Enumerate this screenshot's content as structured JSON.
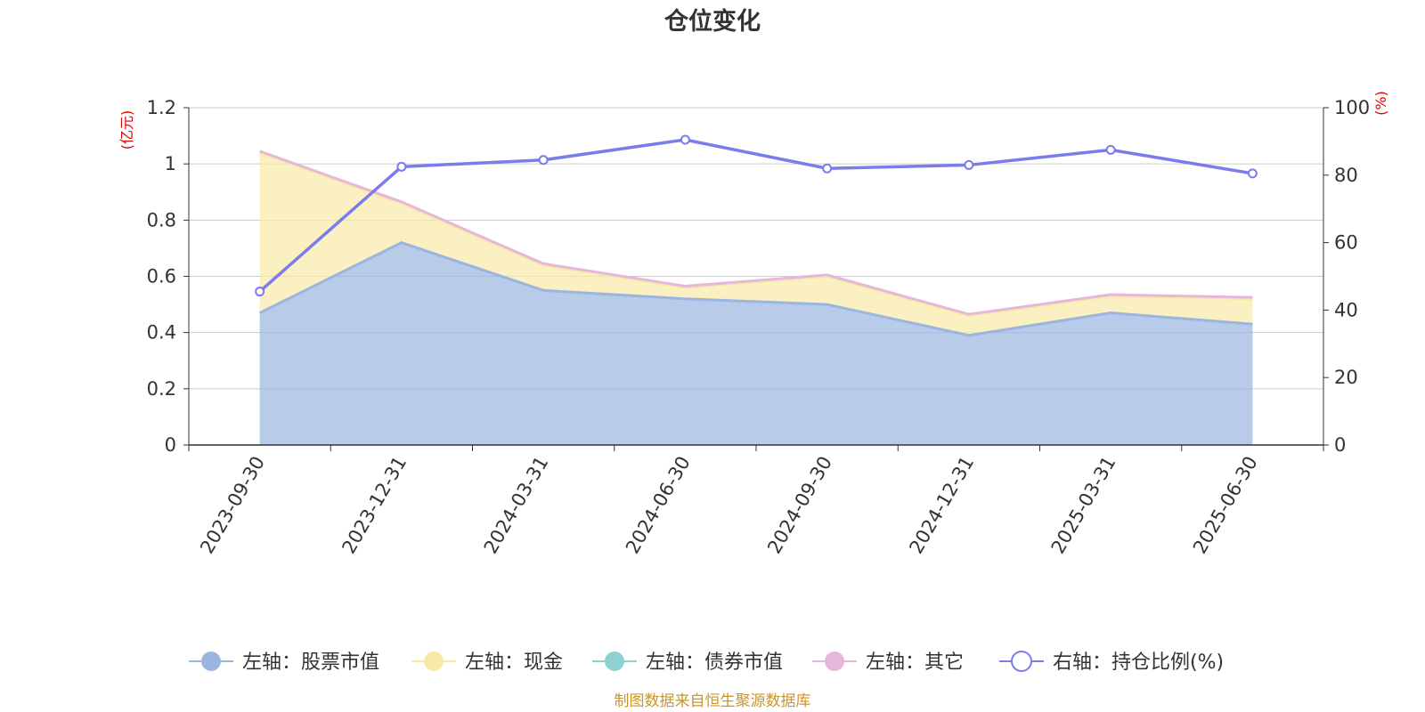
{
  "chart_data": {
    "type": "area",
    "title": "仓位变化",
    "left_axis_unit": "(亿元)",
    "right_axis_unit": "(%)",
    "x": [
      "2023-09-30",
      "2023-12-31",
      "2024-03-31",
      "2024-06-30",
      "2024-09-30",
      "2024-12-31",
      "2025-03-31",
      "2025-06-30"
    ],
    "left_ylim": [
      0,
      1.2
    ],
    "left_yticks": [
      "0",
      "0.2",
      "0.4",
      "0.6",
      "0.8",
      "1",
      "1.2"
    ],
    "right_ylim": [
      0,
      100
    ],
    "right_yticks": [
      "0",
      "20",
      "40",
      "60",
      "80",
      "100"
    ],
    "stacked": true,
    "grid": true,
    "legend_position": "bottom",
    "series": [
      {
        "name": "左轴：股票市值",
        "axis": "left",
        "kind": "area",
        "color": "#9ab5e0",
        "values": [
          0.47,
          0.72,
          0.55,
          0.52,
          0.5,
          0.39,
          0.47,
          0.43
        ]
      },
      {
        "name": "左轴：现金",
        "axis": "left",
        "kind": "area",
        "color": "#f9e9a6",
        "values": [
          0.57,
          0.14,
          0.09,
          0.04,
          0.1,
          0.07,
          0.06,
          0.09
        ]
      },
      {
        "name": "左轴：债券市值",
        "axis": "left",
        "kind": "area",
        "color": "#8fd0d1",
        "values": [
          0,
          0,
          0,
          0,
          0,
          0,
          0,
          0
        ]
      },
      {
        "name": "左轴：其它",
        "axis": "left",
        "kind": "area",
        "color": "#e6b6db",
        "values": [
          0.005,
          0.005,
          0.005,
          0.005,
          0.005,
          0.005,
          0.005,
          0.005
        ]
      },
      {
        "name": "右轴：持仓比例(%)",
        "axis": "right",
        "kind": "line",
        "color": "#7b7cec",
        "values": [
          45.5,
          82.5,
          84.5,
          90.5,
          82,
          83,
          87.5,
          80.5
        ]
      }
    ]
  },
  "footer": "制图数据来自恒生聚源数据库"
}
